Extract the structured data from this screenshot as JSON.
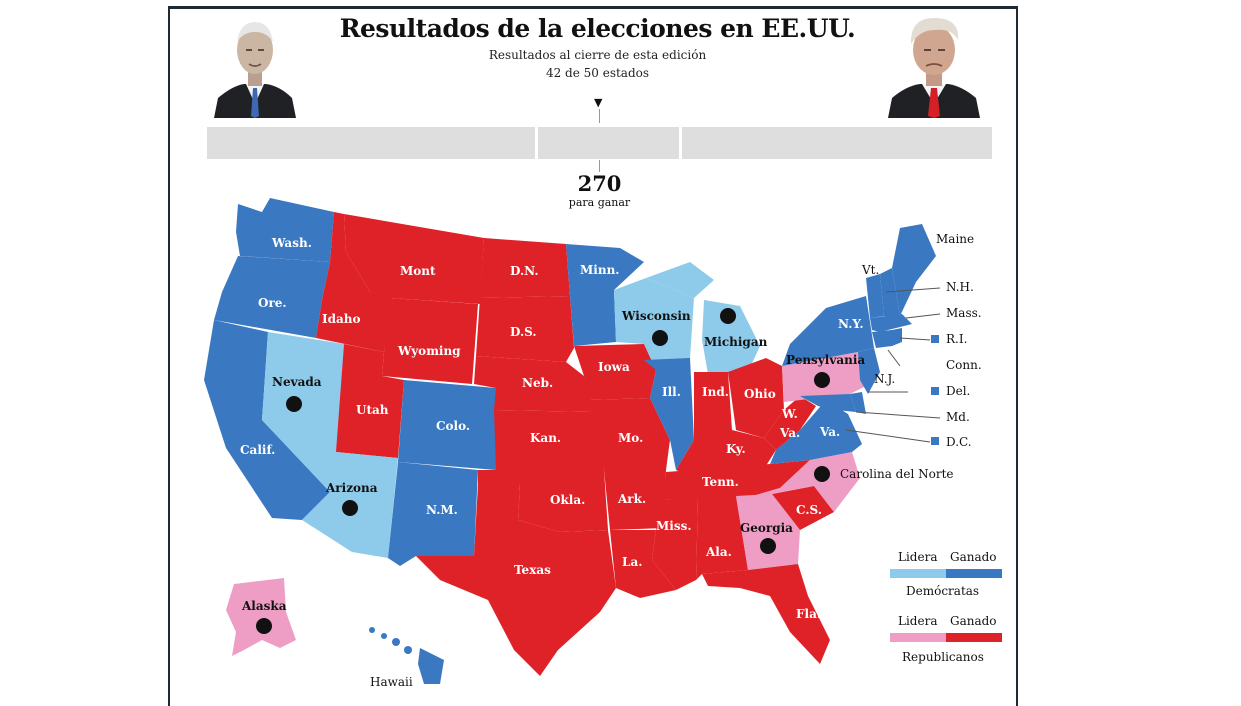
{
  "header": {
    "title": "Resultados de la elecciones en EE.UU.",
    "subtitle": "Resultados al cierre de esta edición",
    "states_count": "42 de 50 estados"
  },
  "threshold": {
    "value": "270",
    "label": "para ganar"
  },
  "colors": {
    "dem_won": "#3a78c2",
    "dem_lead": "#8ecbeb",
    "rep_won": "#df2228",
    "rep_lead": "#ee9ec4",
    "bar": "#dedede"
  },
  "states": {
    "wash": "Wash.",
    "ore": "Ore.",
    "calif": "Calif.",
    "nevada": "Nevada",
    "idaho": "Idaho",
    "mont": "Mont",
    "wyoming": "Wyoming",
    "utah": "Utah",
    "arizona": "Arizona",
    "colo": "Colo.",
    "nm": "N.M.",
    "dn": "D.N.",
    "ds": "D.S.",
    "neb": "Neb.",
    "kan": "Kan.",
    "okla": "Okla.",
    "texas": "Texas",
    "minn": "Minn.",
    "iowa": "Iowa",
    "mo": "Mo.",
    "ark": "Ark.",
    "la": "La.",
    "wisconsin": "Wisconsin",
    "ill": "Ill.",
    "michigan": "Michigan",
    "ind": "Ind.",
    "ohio": "Ohio",
    "ky": "Ky.",
    "tenn": "Tenn.",
    "miss": "Miss.",
    "ala": "Ala.",
    "georgia": "Georgia",
    "fla": "Fla.",
    "sc": "C.S.",
    "nc": "Carolina del Norte",
    "va": "Va.",
    "wv": "W.",
    "wv2": "Va.",
    "penn": "Pensylvania",
    "ny": "N.Y.",
    "alaska": "Alaska",
    "hawaii": "Hawaii"
  },
  "northeast": {
    "maine": "Maine",
    "vt": "Vt.",
    "nh": "N.H.",
    "mass": "Mass.",
    "ri": "R.I.",
    "conn": "Conn.",
    "nj": "N.J.",
    "del": "Del.",
    "md": "Md.",
    "dc": "D.C."
  },
  "legend": {
    "dem_lead": "Lidera",
    "dem_won": "Ganado",
    "dem_party": "Demócratas",
    "rep_lead": "Lidera",
    "rep_won": "Ganado",
    "rep_party": "Republicanos"
  }
}
